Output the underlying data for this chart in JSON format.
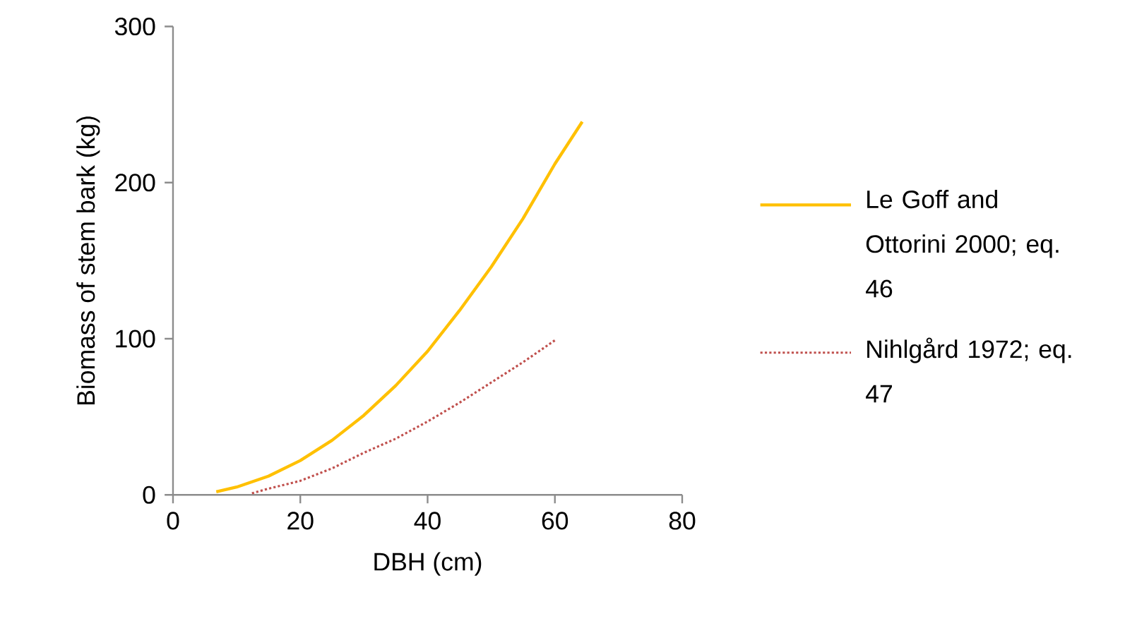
{
  "chart_data": {
    "type": "line",
    "xlabel": "DBH (cm)",
    "ylabel": "Biomass of stem bark (kg)",
    "xlim": [
      0,
      80
    ],
    "xticks": [
      0,
      20,
      40,
      60,
      80
    ],
    "ylim": [
      0,
      300
    ],
    "yticks": [
      0,
      100,
      200,
      300
    ],
    "grid": false,
    "legend": "right",
    "marker": "none",
    "series": [
      {
        "name": "Le Goff and Ottorini 2000; eq. 46",
        "color": "#ffc000",
        "line_style": "solid",
        "x": [
          6.8,
          10,
          15,
          20,
          25,
          30,
          35,
          40,
          45,
          50,
          55,
          60,
          64.3
        ],
        "values": [
          2,
          5,
          12,
          22,
          35,
          51,
          70,
          92,
          118,
          146,
          177,
          212,
          239
        ]
      },
      {
        "name": "Nihlgård 1972; eq. 47",
        "color": "#c0504d",
        "line_style": "dotted",
        "x": [
          12.4,
          15,
          20,
          25,
          30,
          35,
          40,
          45,
          50,
          55,
          60
        ],
        "values": [
          1,
          4,
          9,
          17,
          27,
          36,
          47,
          59,
          72,
          85,
          99
        ]
      }
    ]
  }
}
